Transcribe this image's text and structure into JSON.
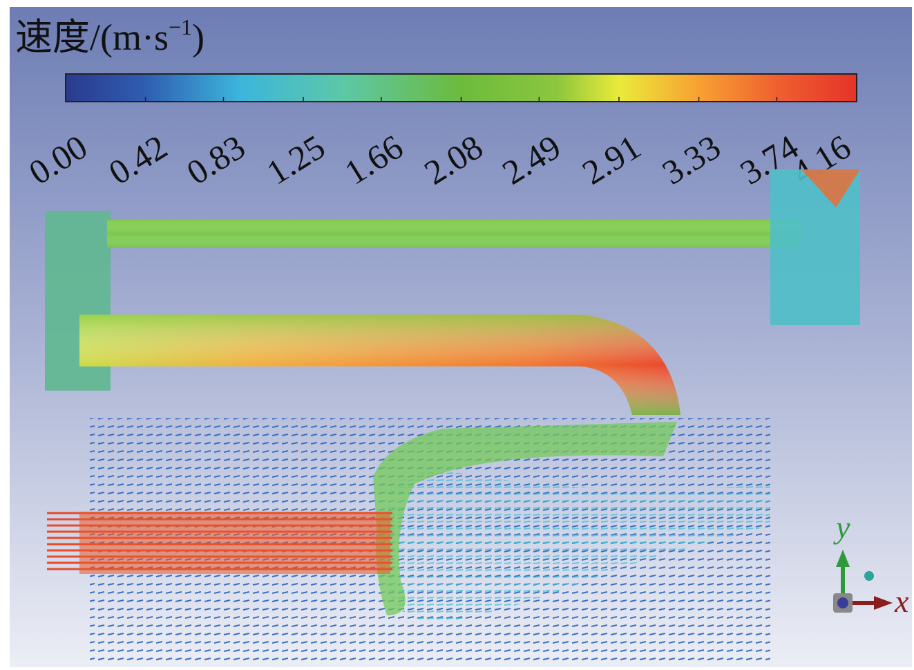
{
  "chart_data": {
    "type": "colorbar",
    "title": {
      "main": "速度/(m·s",
      "sup": "−1",
      "end": ")"
    },
    "ticks": [
      {
        "value": 0,
        "label": "0.00"
      },
      0.42,
      0.83,
      1.25,
      1.66,
      2.08,
      2.49,
      2.91,
      3.33,
      3.74,
      4.16
    ],
    "range": [
      0,
      4.16
    ],
    "axes": {
      "y": "y",
      "x": "x"
    }
  }
}
